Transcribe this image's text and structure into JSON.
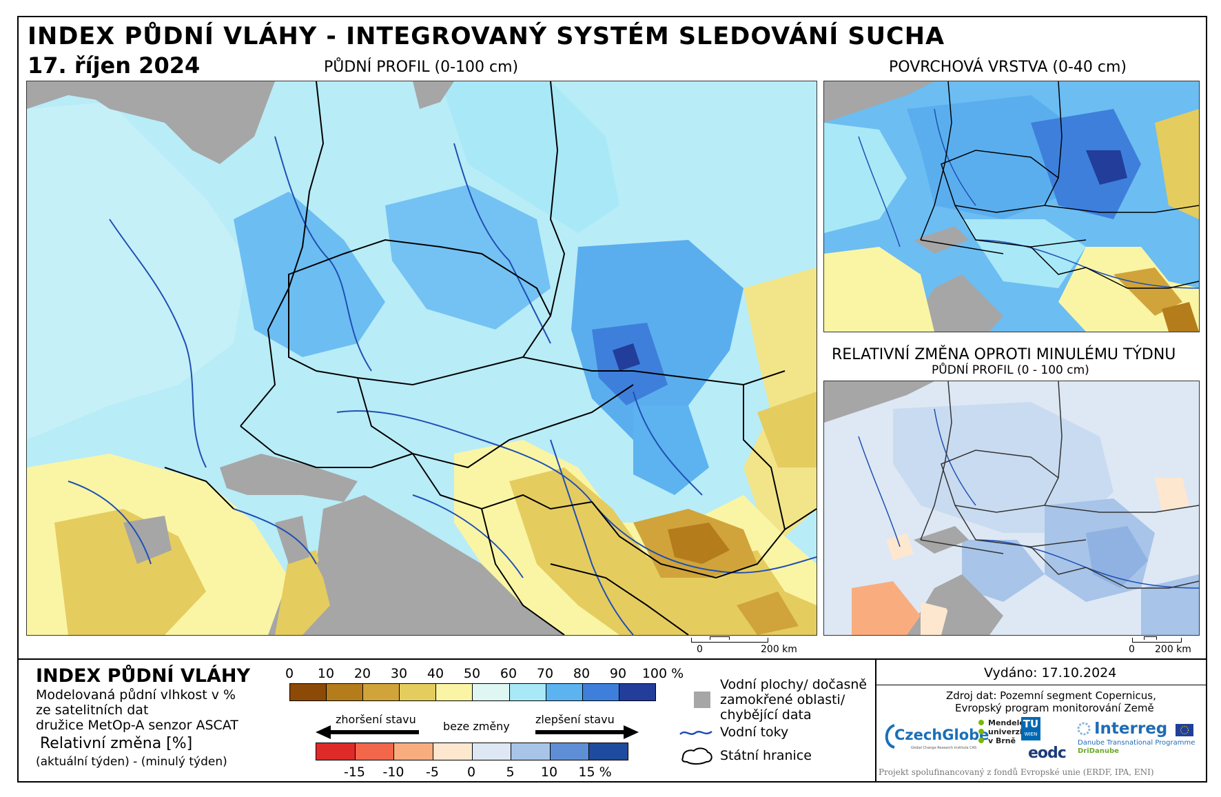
{
  "title": "INDEX PŮDNÍ VLÁHY - INTEGROVANÝ SYSTÉM SLEDOVÁNÍ SUCHA",
  "date": "17. říjen 2024",
  "panels": {
    "main": {
      "label": "PŮDNÍ PROFIL (0-100 cm)",
      "scalebar": {
        "start": "0",
        "end": "200 km"
      }
    },
    "surface": {
      "label": "POVRCHOVÁ VRSTVA (0-40 cm)"
    },
    "change": {
      "label": "RELATIVNÍ ZMĚNA OPROTI MINULÉMU TÝDNU",
      "sublabel": "PŮDNÍ PROFIL (0 - 100 cm)",
      "scalebar": {
        "start": "0",
        "end": "200 km"
      }
    }
  },
  "colors": {
    "no_data": "#a6a6a6",
    "river": "#1f4fb4",
    "border": "#000000",
    "sea": "#a6a6a6"
  },
  "legend": {
    "index_title": "INDEX PŮDNÍ VLÁHY",
    "index_desc": [
      "Modelovaná půdní vlhkost v %",
      "ze satelitních dat",
      "družice MetOp-A senzor ASCAT"
    ],
    "change_title": "Relativní změna [%]",
    "change_desc": "(aktuální týden) - (minulý týden)",
    "index_ticks": [
      "0",
      "10",
      "20",
      "30",
      "40",
      "50",
      "60",
      "70",
      "80",
      "90",
      "100 %"
    ],
    "index_colors": [
      "#8c4a06",
      "#b57c1c",
      "#d0a43a",
      "#e5cc5e",
      "#faf5a4",
      "#dff7f3",
      "#a9e8f7",
      "#5cb3ef",
      "#3e7fdb",
      "#223d9a"
    ],
    "worse_label": "zhoršení stavu",
    "nochange_label": "beze změny",
    "better_label": "zlepšení stavu",
    "change_ticks": [
      "-15",
      "-10",
      "-5",
      "0",
      "5",
      "10",
      "15 %"
    ],
    "change_colors": [
      "#df2a2a",
      "#f2664a",
      "#f9ad7f",
      "#fde7cf",
      "#dde8f4",
      "#a8c4e8",
      "#5e8fd6",
      "#1f4b9e"
    ],
    "nodata_label": [
      "Vodní plochy/ dočasně",
      "zamokřené oblasti/",
      "chybějící data"
    ],
    "rivers_label": "Vodní toky",
    "borders_label": "Státní hranice"
  },
  "issued": "Vydáno: 17.10.2024",
  "source": [
    "Zdroj dat: Pozemní segment Copernicus,",
    "Evropský program monitorování Země"
  ],
  "logos": {
    "czechglobe": "CzechGlobe",
    "czechglobe_sub": "Global Change Research Institute CAS",
    "mendel": [
      "Mendelova",
      "univerzita",
      "v Brně"
    ],
    "tu": "TU",
    "tu_sub": "WIEN",
    "eodc": "eodc",
    "interreg": "Interreg",
    "interreg_sub1": "Danube Transnational Programme",
    "interreg_sub2": "DriDanube"
  },
  "footer": "Projekt spolufinancovaný z fondů Evropské unie (ERDF, IPA, ENI)"
}
